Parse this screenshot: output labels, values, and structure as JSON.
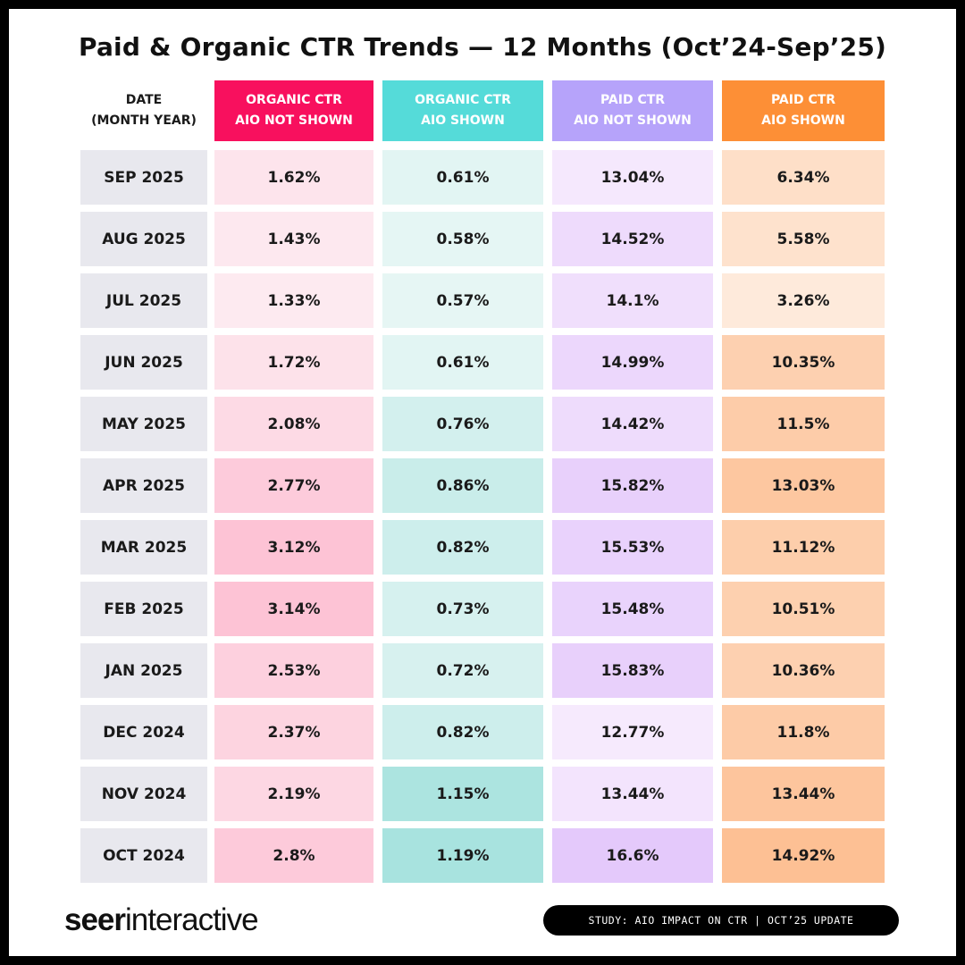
{
  "chart_data": {
    "type": "table",
    "title": "Paid & Organic CTR Trends — 12 Months (Oct’24-Sep’25)",
    "date_header": [
      "DATE",
      "(MONTH YEAR)"
    ],
    "columns": [
      {
        "header": [
          "ORGANIC CTR",
          "AIO NOT SHOWN"
        ],
        "header_color": "#f8105e",
        "low_color": "#fdeaf0",
        "high_color": "#fdc3d5"
      },
      {
        "header": [
          "ORGANIC CTR",
          "AIO SHOWN"
        ],
        "header_color": "#55dbd9",
        "low_color": "#e6f6f4",
        "high_color": "#a8e3df"
      },
      {
        "header": [
          "PAID CTR",
          "AIO NOT SHOWN"
        ],
        "header_color": "#b6a3fa",
        "low_color": "#f6eafd",
        "high_color": "#e4c9fb"
      },
      {
        "header": [
          "PAID CTR",
          "AIO SHOWN"
        ],
        "header_color": "#fd8f36",
        "low_color": "#feeadb",
        "high_color": "#fdc094"
      }
    ],
    "rows": [
      {
        "date": "SEP 2025",
        "values": [
          "1.62%",
          "0.61%",
          "13.04%",
          "6.34%"
        ]
      },
      {
        "date": "AUG 2025",
        "values": [
          "1.43%",
          "0.58%",
          "14.52%",
          "5.58%"
        ]
      },
      {
        "date": "JUL 2025",
        "values": [
          "1.33%",
          "0.57%",
          "14.1%",
          "3.26%"
        ]
      },
      {
        "date": "JUN 2025",
        "values": [
          "1.72%",
          "0.61%",
          "14.99%",
          "10.35%"
        ]
      },
      {
        "date": "MAY 2025",
        "values": [
          "2.08%",
          "0.76%",
          "14.42%",
          "11.5%"
        ]
      },
      {
        "date": "APR 2025",
        "values": [
          "2.77%",
          "0.86%",
          "15.82%",
          "13.03%"
        ]
      },
      {
        "date": "MAR 2025",
        "values": [
          "3.12%",
          "0.82%",
          "15.53%",
          "11.12%"
        ]
      },
      {
        "date": "FEB 2025",
        "values": [
          "3.14%",
          "0.73%",
          "15.48%",
          "10.51%"
        ]
      },
      {
        "date": "JAN 2025",
        "values": [
          "2.53%",
          "0.72%",
          "15.83%",
          "10.36%"
        ]
      },
      {
        "date": "DEC 2024",
        "values": [
          "2.37%",
          "0.82%",
          "12.77%",
          "11.8%"
        ]
      },
      {
        "date": "NOV 2024",
        "values": [
          "2.19%",
          "1.15%",
          "13.44%",
          "13.44%"
        ]
      },
      {
        "date": "OCT 2024",
        "values": [
          "2.8%",
          "1.19%",
          "16.6%",
          "14.92%"
        ]
      }
    ]
  },
  "footer": {
    "logo": "seerinteractive",
    "badge": "STUDY: AIO IMPACT ON CTR | OCT’25 UPDATE"
  }
}
